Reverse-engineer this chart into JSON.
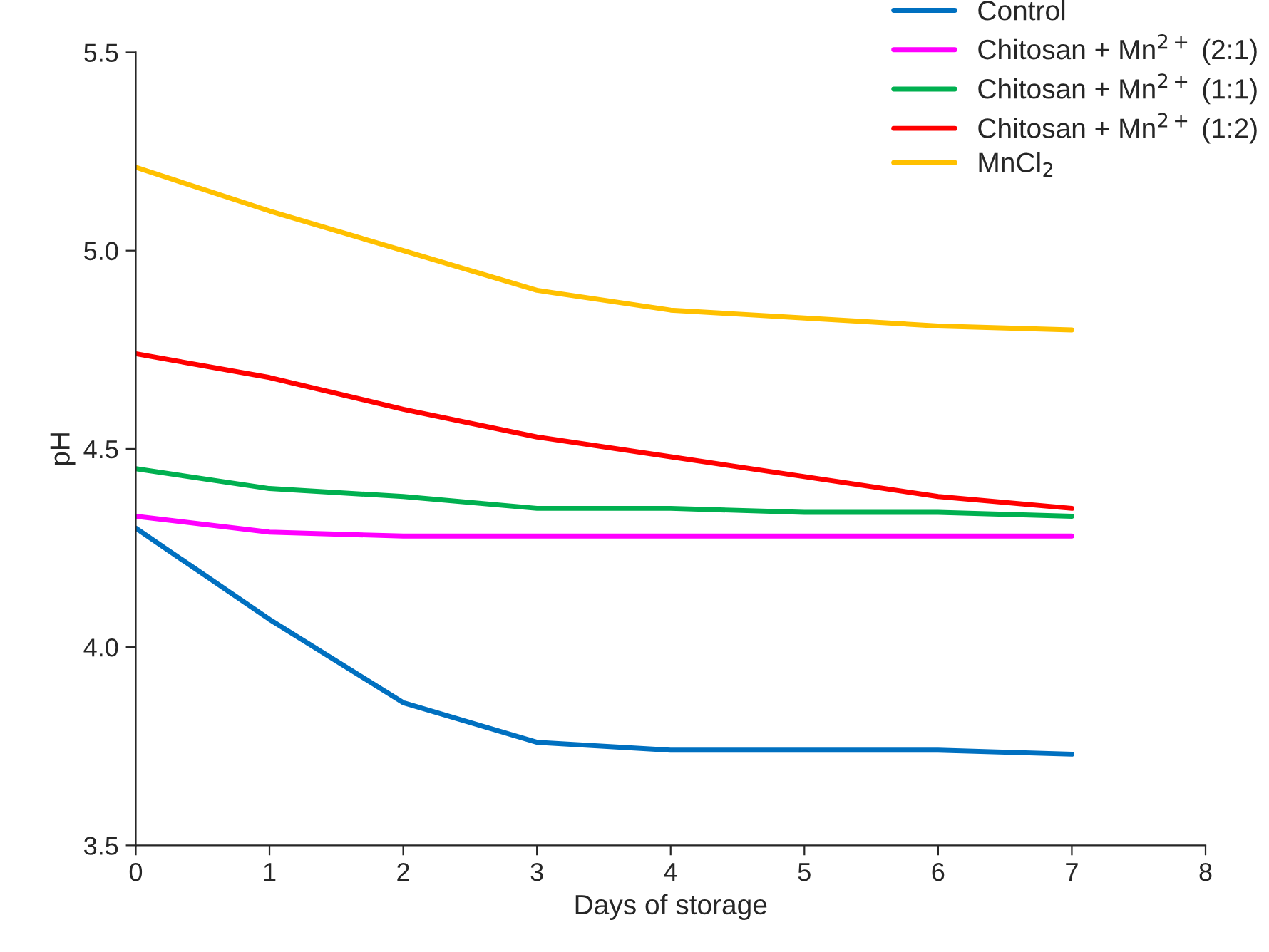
{
  "chart_data": {
    "type": "line",
    "xlabel": "Days of storage",
    "ylabel": "pH",
    "x": [
      0,
      1,
      2,
      3,
      4,
      5,
      6,
      7
    ],
    "xlim": [
      0,
      8
    ],
    "xticks": [
      0,
      1,
      2,
      3,
      4,
      5,
      6,
      7,
      8
    ],
    "ylim": [
      3.5,
      5.5
    ],
    "yticks": [
      {
        "value": 3.5,
        "label": "3.5"
      },
      {
        "value": 4.0,
        "label": "4.0"
      },
      {
        "value": 4.5,
        "label": "4.5"
      },
      {
        "value": 5.0,
        "label": "5.0"
      },
      {
        "value": 5.5,
        "label": "5.5"
      }
    ],
    "grid": false,
    "legend": "top right",
    "marker": "none",
    "line_style": "solid",
    "series": [
      {
        "name": "Control",
        "color": "#0070c0",
        "values": [
          4.3,
          4.07,
          3.86,
          3.76,
          3.74,
          3.74,
          3.74,
          3.73
        ]
      },
      {
        "name": "Chitosan + Mn$^{2+}$ (2:1)",
        "color": "#ff00ff",
        "values": [
          4.33,
          4.29,
          4.28,
          4.28,
          4.28,
          4.28,
          4.28,
          4.28
        ]
      },
      {
        "name": "Chitosan + Mn$^{2+}$ (1:1)",
        "color": "#00b050",
        "values": [
          4.45,
          4.4,
          4.38,
          4.35,
          4.35,
          4.34,
          4.34,
          4.33
        ]
      },
      {
        "name": "Chitosan + Mn$^{2+}$ (1:2)",
        "color": "#ff0000",
        "values": [
          4.74,
          4.68,
          4.6,
          4.53,
          4.48,
          4.43,
          4.38,
          4.35
        ]
      },
      {
        "name": "MnCl$_{2}$",
        "color": "#ffc000",
        "values": [
          5.21,
          5.1,
          5.0,
          4.9,
          4.85,
          4.83,
          4.81,
          4.8
        ]
      }
    ]
  }
}
